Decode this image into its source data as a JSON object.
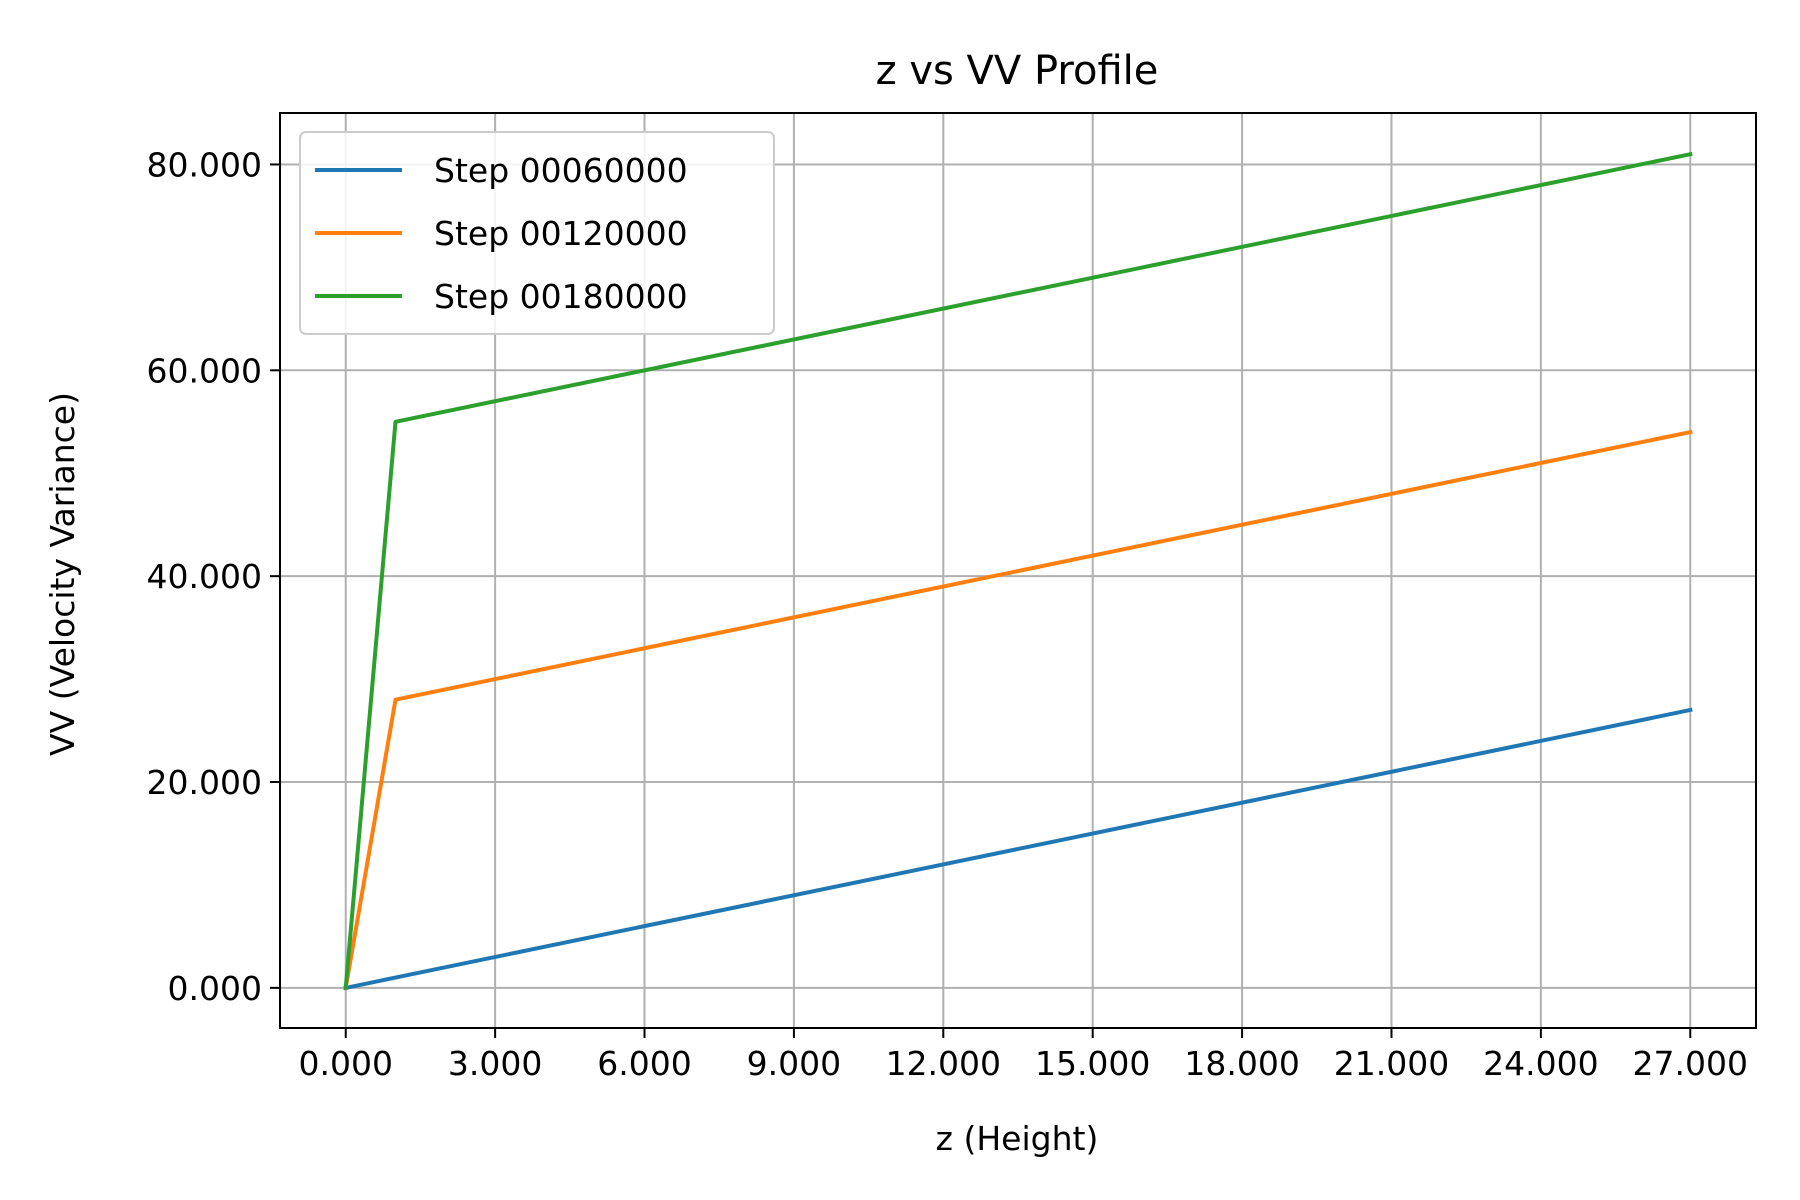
{
  "chart_data": {
    "type": "line",
    "title": "z vs VV Profile",
    "xlabel": "z (Height)",
    "ylabel": "VV (Velocity Variance)",
    "xlim": [
      -1.32,
      28.32
    ],
    "ylim": [
      -3.9,
      85.0
    ],
    "xticks": [
      0,
      3,
      6,
      9,
      12,
      15,
      18,
      21,
      24,
      27
    ],
    "xtick_labels": [
      "0.000",
      "3.000",
      "6.000",
      "9.000",
      "12.000",
      "15.000",
      "18.000",
      "21.000",
      "24.000",
      "27.000"
    ],
    "yticks": [
      0,
      20,
      40,
      60,
      80
    ],
    "ytick_labels": [
      "0.000",
      "20.000",
      "40.000",
      "60.000",
      "80.000"
    ],
    "grid": true,
    "legend_position": "top-left",
    "x": [
      0,
      1,
      27
    ],
    "series": [
      {
        "name": "Step 00060000",
        "values": [
          0,
          1,
          27
        ],
        "color": "#1f77b4"
      },
      {
        "name": "Step 00120000",
        "values": [
          0,
          28,
          54
        ],
        "color": "#ff7f0e"
      },
      {
        "name": "Step 00180000",
        "values": [
          0,
          55,
          81
        ],
        "color": "#2ca02c"
      }
    ]
  }
}
